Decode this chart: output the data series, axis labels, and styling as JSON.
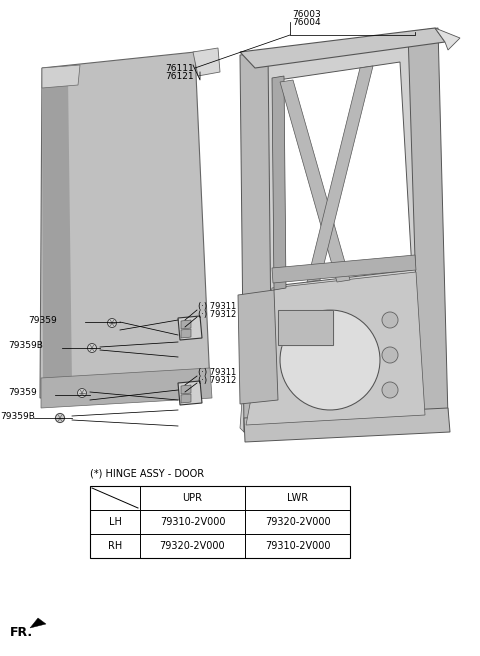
{
  "bg_color": "#ffffff",
  "fig_width": 4.8,
  "fig_height": 6.56,
  "dpi": 100,
  "lc": "#000000",
  "part_76003": "76003",
  "part_76004": "76004",
  "part_76111": "76111",
  "part_76121": "76121",
  "part_79311_1": "(·) 79311",
  "part_79312_1": "(·) 79312",
  "part_79359_1": "79359",
  "part_79359B_1": "79359B",
  "part_79311_2": "(·) 79311",
  "part_79312_2": "(·) 79312",
  "part_79359_2": "79359",
  "part_79359B_2": "79359B",
  "table_title": "(*) HINGE ASSY - DOOR",
  "table_header": [
    "",
    "UPR",
    "LWR"
  ],
  "table_rows": [
    [
      "LH",
      "79310-2V000",
      "79320-2V000"
    ],
    [
      "RH",
      "79320-2V000",
      "79310-2V000"
    ]
  ],
  "fr_label": "FR."
}
